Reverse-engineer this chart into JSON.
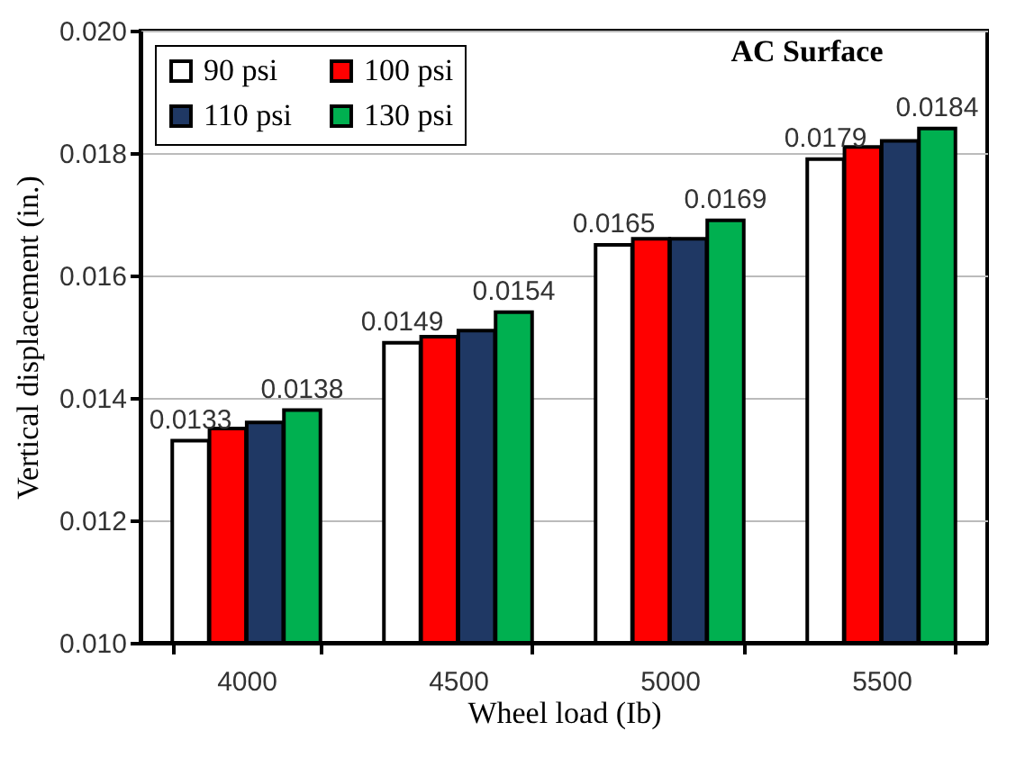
{
  "chart_data": {
    "type": "bar",
    "title": "AC Surface",
    "xlabel": "Wheel load (Ib)",
    "ylabel": "Vertical displacement (in.)",
    "categories": [
      "4000",
      "4500",
      "5000",
      "5500"
    ],
    "series": [
      {
        "name": "90 psi",
        "color": "#ffffff",
        "values": [
          0.0133,
          0.0149,
          0.0165,
          0.0179
        ],
        "value_labels": [
          "0.0133",
          "0.0149",
          "0.0165",
          "0.0179"
        ]
      },
      {
        "name": "100 psi",
        "color": "#ff0000",
        "values": [
          0.0135,
          0.015,
          0.0166,
          0.0181
        ]
      },
      {
        "name": "110 psi",
        "color": "#1f3864",
        "values": [
          0.0136,
          0.0151,
          0.0166,
          0.0182
        ]
      },
      {
        "name": "130 psi",
        "color": "#00b050",
        "values": [
          0.0138,
          0.0154,
          0.0169,
          0.0184
        ],
        "value_labels": [
          "0.0138",
          "0.0154",
          "0.0169",
          "0.0184"
        ]
      }
    ],
    "ylim": [
      0.01,
      0.02
    ],
    "yticks": [
      {
        "value": 0.01,
        "label": "0.010"
      },
      {
        "value": 0.012,
        "label": "0.012"
      },
      {
        "value": 0.014,
        "label": "0.014"
      },
      {
        "value": 0.016,
        "label": "0.016"
      },
      {
        "value": 0.018,
        "label": "0.018"
      },
      {
        "value": 0.02,
        "label": "0.020"
      }
    ],
    "grid": "y",
    "legend": "top left"
  }
}
